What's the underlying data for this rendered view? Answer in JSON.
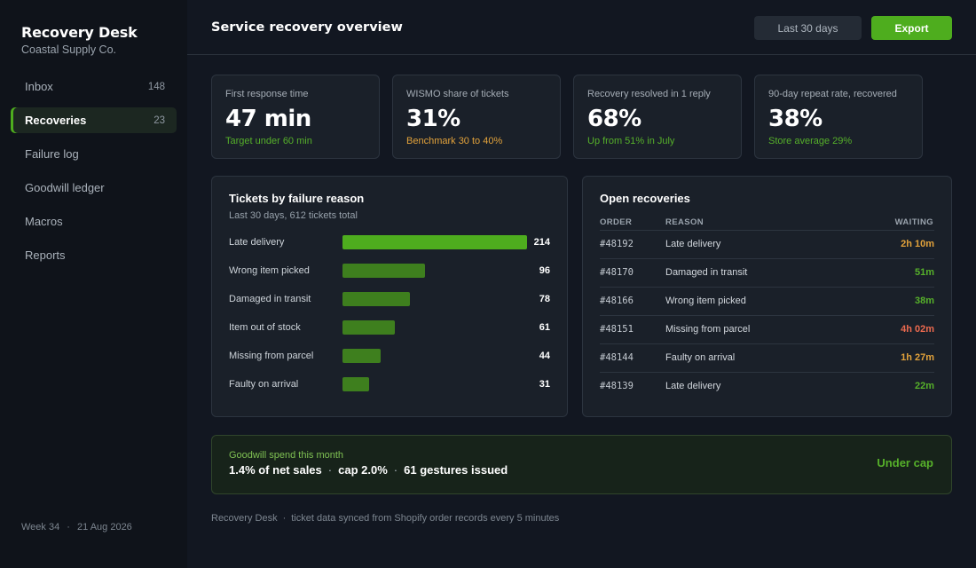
{
  "app": {
    "name": "Recovery Desk",
    "org": "Coastal Supply Co."
  },
  "sidebar": {
    "items": [
      {
        "label": "Inbox",
        "count": "148"
      },
      {
        "label": "Recoveries",
        "count": "23",
        "active": true
      },
      {
        "label": "Failure log",
        "count": ""
      },
      {
        "label": "Goodwill ledger",
        "count": ""
      },
      {
        "label": "Macros",
        "count": ""
      },
      {
        "label": "Reports",
        "count": ""
      }
    ],
    "footer_week": "Week 34",
    "footer_date": "21 Aug 2026"
  },
  "header": {
    "title": "Service recovery overview",
    "range_label": "Last 30 days",
    "export_label": "Export"
  },
  "kpis": [
    {
      "label": "First response time",
      "value": "47 min",
      "note": "Target under 60 min",
      "note_tone": "green"
    },
    {
      "label": "WISMO share of tickets",
      "value": "31%",
      "note": "Benchmark 30 to 40%",
      "note_tone": "amber"
    },
    {
      "label": "Recovery resolved in 1 reply",
      "value": "68%",
      "note": "Up from 51% in July",
      "note_tone": "green"
    },
    {
      "label": "90-day repeat rate, recovered",
      "value": "38%",
      "note": "Store average 29%",
      "note_tone": "green"
    }
  ],
  "chart_data": {
    "type": "bar",
    "orientation": "horizontal",
    "title": "Tickets by failure reason",
    "subtitle": "Last 30 days, 612 tickets total",
    "categories": [
      "Late delivery",
      "Wrong item picked",
      "Damaged in transit",
      "Item out of stock",
      "Missing from parcel",
      "Faulty on arrival"
    ],
    "values": [
      214,
      96,
      78,
      61,
      44,
      31
    ],
    "xlim": [
      0,
      214
    ],
    "colors": {
      "top": "#4ead1e",
      "rest": "#3e7f1e"
    }
  },
  "recoveries": {
    "title": "Open recoveries",
    "headers": {
      "order": "ORDER",
      "reason": "REASON",
      "waiting": "WAITING"
    },
    "rows": [
      {
        "order": "#48192",
        "reason": "Late delivery",
        "waiting": "2h 10m",
        "tone": "amber"
      },
      {
        "order": "#48170",
        "reason": "Damaged in transit",
        "waiting": "51m",
        "tone": "green"
      },
      {
        "order": "#48166",
        "reason": "Wrong item picked",
        "waiting": "38m",
        "tone": "green"
      },
      {
        "order": "#48151",
        "reason": "Missing from parcel",
        "waiting": "4h 02m",
        "tone": "red"
      },
      {
        "order": "#48144",
        "reason": "Faulty on arrival",
        "waiting": "1h 27m",
        "tone": "amber"
      },
      {
        "order": "#48139",
        "reason": "Late delivery",
        "waiting": "22m",
        "tone": "green"
      }
    ]
  },
  "goodwill": {
    "label": "Goodwill spend this month",
    "share": "1.4% of net sales",
    "cap": "cap 2.0%",
    "gestures": "61 gestures issued",
    "separator": "·",
    "status": "Under cap"
  },
  "footer": {
    "app": "Recovery Desk",
    "separator": "·",
    "sync_note": "ticket data synced from Shopify order records every 5 minutes"
  },
  "colors": {
    "accent": "#4ead1e",
    "amber": "#e2a23b",
    "red": "#ec6a4f",
    "background": "#121721",
    "panel": "#1a2029"
  }
}
